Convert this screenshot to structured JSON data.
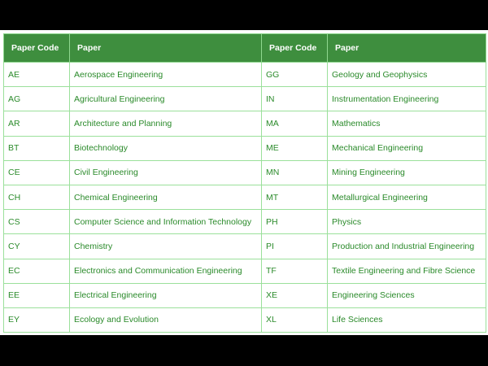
{
  "table": {
    "headers": [
      "Paper Code",
      "Paper",
      "Paper Code",
      "Paper"
    ],
    "rows": [
      [
        "AE",
        "Aerospace Engineering",
        "GG",
        "Geology and Geophysics"
      ],
      [
        "AG",
        "Agricultural Engineering",
        "IN",
        "Instrumentation Engineering"
      ],
      [
        "AR",
        "Architecture and Planning",
        "MA",
        "Mathematics"
      ],
      [
        "BT",
        "Biotechnology",
        "ME",
        "Mechanical Engineering"
      ],
      [
        "CE",
        "Civil Engineering",
        "MN",
        "Mining Engineering"
      ],
      [
        "CH",
        "Chemical Engineering",
        "MT",
        "Metallurgical Engineering"
      ],
      [
        "CS",
        "Computer Science and Information Technology",
        "PH",
        "Physics"
      ],
      [
        "CY",
        "Chemistry",
        "PI",
        "Production and Industrial Engineering"
      ],
      [
        "EC",
        "Electronics and Communication Engineering",
        "TF",
        "Textile Engineering and Fibre Science"
      ],
      [
        "EE",
        "Electrical Engineering",
        "XE",
        "Engineering Sciences"
      ],
      [
        "EY",
        "Ecology and Evolution",
        "XL",
        "Life Sciences"
      ]
    ]
  },
  "colors": {
    "header_bg": "#3e8e3e",
    "text": "#2a8a2a",
    "border": "#9be09b",
    "outer_bg": "#000000"
  }
}
